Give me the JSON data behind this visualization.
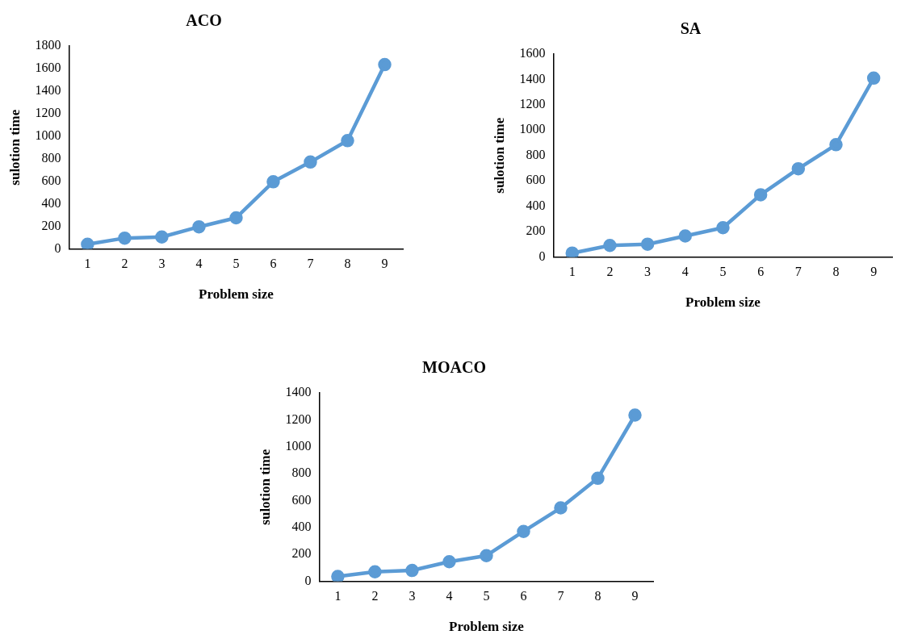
{
  "chart_data": [
    {
      "type": "line",
      "title": "ACO",
      "xlabel": "Problem size",
      "ylabel": "sulotion time",
      "categories": [
        "1",
        "2",
        "3",
        "4",
        "5",
        "6",
        "7",
        "8",
        "9"
      ],
      "series": [
        {
          "color": "#5b9bd5",
          "values": [
            40,
            95,
            105,
            195,
            275,
            595,
            770,
            960,
            1635
          ]
        }
      ],
      "ylim": [
        0,
        1800
      ],
      "yticks": [
        0,
        200,
        400,
        600,
        800,
        1000,
        1200,
        1400,
        1600,
        1800
      ],
      "grid": false,
      "legend": false,
      "marker": "circle",
      "line_style": "solid"
    },
    {
      "type": "line",
      "title": "SA",
      "xlabel": "Problem size",
      "ylabel": "sulotion time",
      "categories": [
        "1",
        "2",
        "3",
        "4",
        "5",
        "6",
        "7",
        "8",
        "9"
      ],
      "series": [
        {
          "color": "#5b9bd5",
          "values": [
            30,
            90,
            100,
            165,
            230,
            490,
            695,
            885,
            1410
          ]
        }
      ],
      "ylim": [
        0,
        1600
      ],
      "yticks": [
        0,
        200,
        400,
        600,
        800,
        1000,
        1200,
        1400,
        1600
      ],
      "grid": false,
      "legend": false,
      "marker": "circle",
      "line_style": "solid"
    },
    {
      "type": "line",
      "title": "MOACO",
      "xlabel": "Problem size",
      "ylabel": "sulotion time",
      "categories": [
        "1",
        "2",
        "3",
        "4",
        "5",
        "6",
        "7",
        "8",
        "9"
      ],
      "series": [
        {
          "color": "#5b9bd5",
          "values": [
            35,
            70,
            80,
            145,
            190,
            370,
            545,
            765,
            1235
          ]
        }
      ],
      "ylim": [
        0,
        1400
      ],
      "yticks": [
        0,
        200,
        400,
        600,
        800,
        1000,
        1200,
        1400
      ],
      "grid": false,
      "legend": false,
      "marker": "circle",
      "line_style": "solid"
    }
  ]
}
